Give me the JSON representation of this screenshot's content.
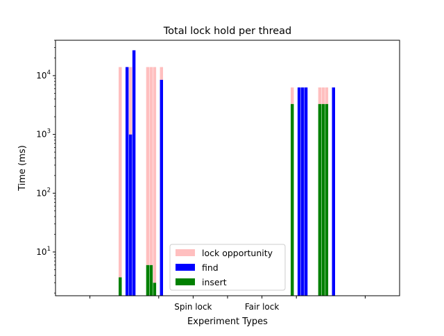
{
  "chart_data": {
    "type": "bar",
    "title": "Total lock hold per thread",
    "xlabel": "Experiment Types",
    "ylabel": "Time (ms)",
    "yscale": "log",
    "ylim": [
      1.8,
      40000
    ],
    "yticks": [
      {
        "value": 10,
        "base": "10",
        "exp": "1"
      },
      {
        "value": 100,
        "base": "10",
        "exp": "2"
      },
      {
        "value": 1000,
        "base": "10",
        "exp": "3"
      },
      {
        "value": 10000,
        "base": "10",
        "exp": "4"
      }
    ],
    "xlim": [
      -0.5,
      4.5
    ],
    "xticks": [
      {
        "value": 0,
        "label": ""
      },
      {
        "value": 1,
        "label": ""
      },
      {
        "value": 1.5,
        "label": "Spin lock"
      },
      {
        "value": 2,
        "label": ""
      },
      {
        "value": 2.5,
        "label": "Fair lock"
      },
      {
        "value": 3,
        "label": ""
      },
      {
        "value": 4,
        "label": ""
      }
    ],
    "legend": {
      "position": "lower-center",
      "entries": [
        {
          "label": "lock opportunity",
          "color": "#ffbfbf"
        },
        {
          "label": "find",
          "color": "#0000ff"
        },
        {
          "label": "insert",
          "color": "#008000"
        }
      ]
    },
    "bar_width": 0.045,
    "bars": [
      {
        "x": 0.44,
        "series": "insert",
        "color": "#008000",
        "bottom": 0,
        "top": 3.7
      },
      {
        "x": 0.44,
        "series": "lock opportunity",
        "color": "#ffbfbf",
        "bottom": 3.7,
        "top": 14000
      },
      {
        "x": 0.54,
        "series": "find",
        "color": "#0000ff",
        "bottom": 0,
        "top": 14000
      },
      {
        "x": 0.59,
        "series": "find",
        "color": "#0000ff",
        "bottom": 0,
        "top": 1000
      },
      {
        "x": 0.59,
        "series": "lock opportunity",
        "color": "#ffbfbf",
        "bottom": 1000,
        "top": 14000
      },
      {
        "x": 0.64,
        "series": "find",
        "color": "#0000ff",
        "bottom": 0,
        "top": 27000
      },
      {
        "x": 0.84,
        "series": "insert",
        "color": "#008000",
        "bottom": 0,
        "top": 6
      },
      {
        "x": 0.84,
        "series": "lock opportunity",
        "color": "#ffbfbf",
        "bottom": 6,
        "top": 14000
      },
      {
        "x": 0.89,
        "series": "insert",
        "color": "#008000",
        "bottom": 0,
        "top": 6
      },
      {
        "x": 0.89,
        "series": "lock opportunity",
        "color": "#ffbfbf",
        "bottom": 6,
        "top": 14000
      },
      {
        "x": 0.94,
        "series": "insert",
        "color": "#008000",
        "bottom": 0,
        "top": 3
      },
      {
        "x": 0.94,
        "series": "lock opportunity",
        "color": "#ffbfbf",
        "bottom": 3,
        "top": 14000
      },
      {
        "x": 1.04,
        "series": "find",
        "color": "#0000ff",
        "bottom": 0,
        "top": 8500
      },
      {
        "x": 1.04,
        "series": "lock opportunity",
        "color": "#ffbfbf",
        "bottom": 8500,
        "top": 14000
      },
      {
        "x": 2.94,
        "series": "insert",
        "color": "#008000",
        "bottom": 0,
        "top": 3300
      },
      {
        "x": 2.94,
        "series": "lock opportunity",
        "color": "#ffbfbf",
        "bottom": 3300,
        "top": 6300
      },
      {
        "x": 3.04,
        "series": "find",
        "color": "#0000ff",
        "bottom": 0,
        "top": 6300
      },
      {
        "x": 3.09,
        "series": "find",
        "color": "#0000ff",
        "bottom": 0,
        "top": 6300
      },
      {
        "x": 3.14,
        "series": "find",
        "color": "#0000ff",
        "bottom": 0,
        "top": 6300
      },
      {
        "x": 3.34,
        "series": "insert",
        "color": "#008000",
        "bottom": 0,
        "top": 3300
      },
      {
        "x": 3.34,
        "series": "lock opportunity",
        "color": "#ffbfbf",
        "bottom": 3300,
        "top": 6300
      },
      {
        "x": 3.39,
        "series": "insert",
        "color": "#008000",
        "bottom": 0,
        "top": 3300
      },
      {
        "x": 3.39,
        "series": "lock opportunity",
        "color": "#ffbfbf",
        "bottom": 3300,
        "top": 6300
      },
      {
        "x": 3.44,
        "series": "insert",
        "color": "#008000",
        "bottom": 0,
        "top": 3300
      },
      {
        "x": 3.44,
        "series": "lock opportunity",
        "color": "#ffbfbf",
        "bottom": 3300,
        "top": 6300
      },
      {
        "x": 3.54,
        "series": "find",
        "color": "#0000ff",
        "bottom": 0,
        "top": 6300
      }
    ]
  }
}
